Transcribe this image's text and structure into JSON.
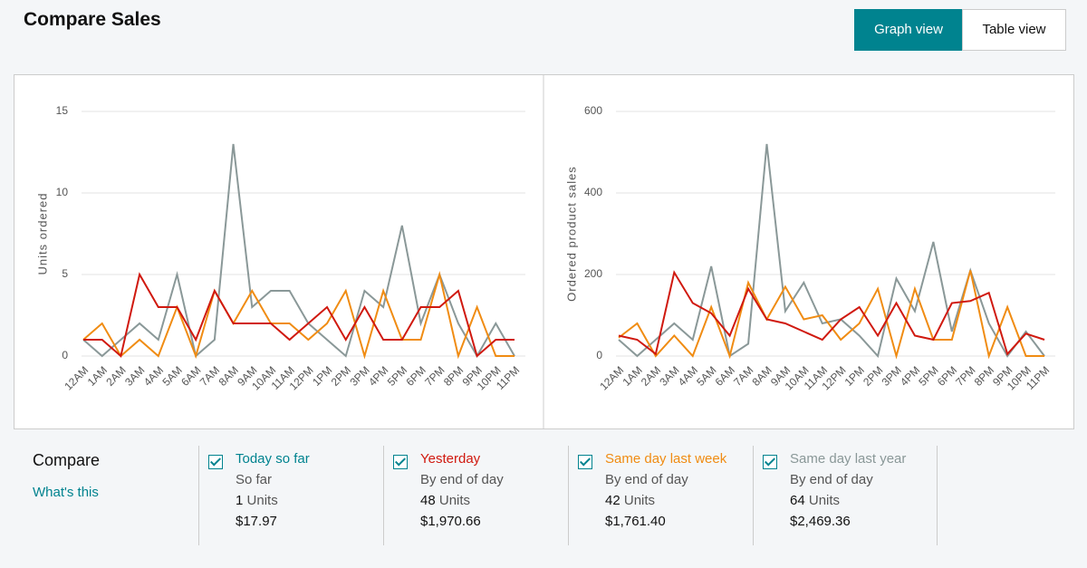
{
  "header": {
    "title": "Compare Sales",
    "buttons": [
      "Graph view",
      "Table view"
    ]
  },
  "chart_data": [
    {
      "type": "line",
      "y_label": "Units ordered",
      "categories": [
        "12AM",
        "1AM",
        "2AM",
        "3AM",
        "4AM",
        "5AM",
        "6AM",
        "7AM",
        "8AM",
        "9AM",
        "10AM",
        "11AM",
        "12PM",
        "1PM",
        "2PM",
        "3PM",
        "4PM",
        "5PM",
        "6PM",
        "7PM",
        "8PM",
        "9PM",
        "10PM",
        "11PM"
      ],
      "ylim": [
        0,
        15
      ],
      "yticks": [
        0,
        5,
        10,
        15
      ],
      "grid": true,
      "series": [
        {
          "name": "Same day last year",
          "color": "#8a9898",
          "values": [
            1,
            0,
            1,
            2,
            1,
            5,
            0,
            1,
            13,
            3,
            4,
            4,
            2,
            1,
            0,
            4,
            3,
            8,
            2,
            5,
            2,
            0,
            2,
            0
          ]
        },
        {
          "name": "Same day last week",
          "color": "#f08c13",
          "values": [
            1,
            2,
            0,
            1,
            0,
            3,
            0,
            4,
            2,
            4,
            2,
            2,
            1,
            2,
            4,
            0,
            4,
            1,
            1,
            5,
            0,
            3,
            0,
            0
          ]
        },
        {
          "name": "Yesterday",
          "color": "#d0190f",
          "values": [
            1,
            1,
            0,
            5,
            3,
            3,
            1,
            4,
            2,
            2,
            2,
            1,
            2,
            3,
            1,
            3,
            1,
            1,
            3,
            3,
            4,
            0,
            1,
            1
          ]
        }
      ]
    },
    {
      "type": "line",
      "y_label": "Ordered product sales",
      "categories": [
        "12AM",
        "1AM",
        "2AM",
        "3AM",
        "4AM",
        "5AM",
        "6AM",
        "7AM",
        "8AM",
        "9AM",
        "10AM",
        "11AM",
        "12PM",
        "1PM",
        "2PM",
        "3PM",
        "4PM",
        "5PM",
        "6PM",
        "7PM",
        "8PM",
        "9PM",
        "10PM",
        "11PM"
      ],
      "ylim": [
        0,
        600
      ],
      "yticks": [
        0,
        200,
        400,
        600
      ],
      "grid": true,
      "series": [
        {
          "name": "Same day last year",
          "color": "#8a9898",
          "values": [
            40,
            0,
            40,
            80,
            40,
            220,
            0,
            30,
            520,
            110,
            180,
            80,
            90,
            50,
            0,
            190,
            110,
            280,
            60,
            210,
            80,
            0,
            60,
            0
          ]
        },
        {
          "name": "Same day last week",
          "color": "#f08c13",
          "values": [
            45,
            80,
            0,
            50,
            0,
            120,
            0,
            180,
            90,
            170,
            90,
            100,
            40,
            80,
            165,
            0,
            165,
            40,
            40,
            210,
            0,
            120,
            0,
            0
          ]
        },
        {
          "name": "Yesterday",
          "color": "#d0190f",
          "values": [
            50,
            40,
            5,
            205,
            130,
            105,
            50,
            165,
            90,
            80,
            60,
            40,
            90,
            120,
            50,
            130,
            50,
            40,
            130,
            135,
            155,
            5,
            55,
            40
          ]
        }
      ]
    }
  ],
  "compare": {
    "title": "Compare",
    "link": "What's this",
    "items": [
      {
        "name": "Today so far",
        "color": "#00838f",
        "subtitle": "So far",
        "units": "1",
        "units_label": "Units",
        "sales": "$17.97"
      },
      {
        "name": "Yesterday",
        "color": "#d0190f",
        "subtitle": "By end of day",
        "units": "48",
        "units_label": "Units",
        "sales": "$1,970.66"
      },
      {
        "name": "Same day last week",
        "color": "#f08c13",
        "subtitle": "By end of day",
        "units": "42",
        "units_label": "Units",
        "sales": "$1,761.40"
      },
      {
        "name": "Same day last year",
        "color": "#8a9898",
        "subtitle": "By end of day",
        "units": "64",
        "units_label": "Units",
        "sales": "$2,469.36"
      }
    ]
  }
}
